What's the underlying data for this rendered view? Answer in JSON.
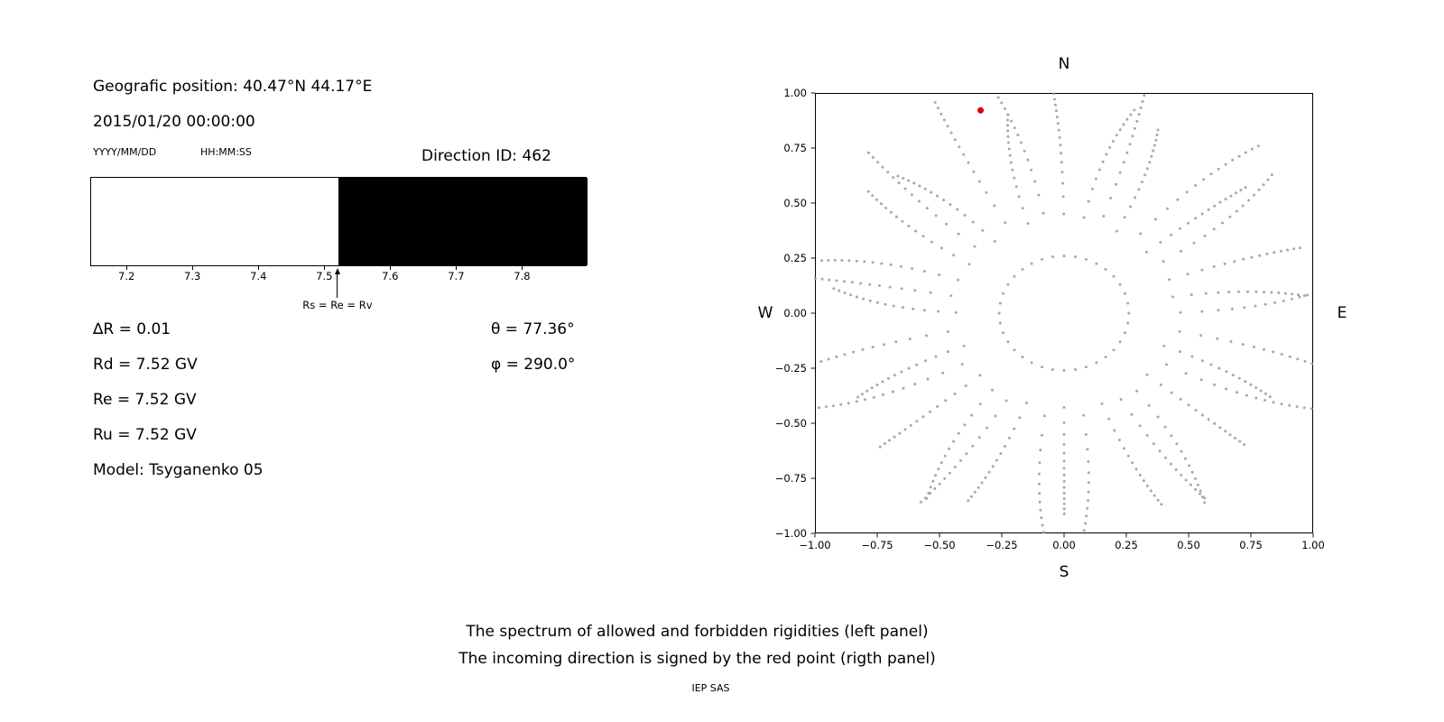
{
  "colors": {
    "background": "#ffffff",
    "text": "#000000",
    "allowed_region": "#ffffff",
    "forbidden_region": "#000000",
    "direction_dots": "#999999",
    "red_point": "#e50000"
  },
  "info": {
    "geo_position": "Geografic position: 40.47°N 44.17°E",
    "datetime": "2015/01/20 00:00:00",
    "date_format_label": "YYYY/MM/DD",
    "time_format_label": "HH:MM:SS",
    "direction_id": "Direction ID: 462"
  },
  "parameters": {
    "delta_r": "∆R = 0.01",
    "theta": "θ = 77.36°",
    "rd": "Rd = 7.52 GV",
    "phi": "φ = 290.0°",
    "re": "Re = 7.52 GV",
    "ru": "Ru = 7.52 GV",
    "model": "Model: Tsyganenko 05"
  },
  "captions": {
    "line1": "The spectrum of allowed and forbidden rigidities (left panel)",
    "line2": "The incoming direction is signed by the red point (rigth panel)",
    "credit": "IEP SAS"
  },
  "chart_data": [
    {
      "id": "rigidity-spectrum",
      "type": "bar",
      "description": "Spectrum of allowed (white) and forbidden (black) rigidities in GV",
      "x_min": 7.145,
      "x_max": 7.898,
      "xticks": [
        7.2,
        7.3,
        7.4,
        7.5,
        7.6,
        7.7,
        7.8
      ],
      "xtick_labels": [
        "7.2",
        "7.3",
        "7.4",
        "7.5",
        "7.6",
        "7.7",
        "7.8"
      ],
      "regions": [
        {
          "name": "allowed",
          "from": 7.145,
          "to": 7.52,
          "color": "#ffffff"
        },
        {
          "name": "forbidden",
          "from": 7.52,
          "to": 7.898,
          "color": "#000000"
        }
      ],
      "annotation": {
        "x": 7.52,
        "label": "Rs = Re = Rv"
      }
    },
    {
      "id": "incoming-directions",
      "type": "scatter",
      "description": "Asymptotic direction map; red point marks the incoming direction",
      "xlim": [
        -1,
        1
      ],
      "ylim": [
        -1,
        1
      ],
      "xticks": [
        -1,
        -0.75,
        -0.5,
        -0.25,
        0,
        0.25,
        0.5,
        0.75,
        1
      ],
      "xtick_labels": [
        "−1.00",
        "−0.75",
        "−0.50",
        "−0.25",
        "0.00",
        "0.25",
        "0.50",
        "0.75",
        "1.00"
      ],
      "yticks": [
        1,
        0.75,
        0.5,
        0.25,
        0,
        -0.25,
        -0.5,
        -0.75,
        -1
      ],
      "ytick_labels": [
        "1.00",
        "0.75",
        "0.50",
        "0.25",
        "0.00",
        "−0.25",
        "−0.50",
        "−0.75",
        "−1.00"
      ],
      "compass": {
        "north": "N",
        "south": "S",
        "east": "E",
        "west": "W"
      },
      "grid": false,
      "legend": false,
      "spokes": {
        "count": 36,
        "angle_step_deg": 10,
        "r_inner": 0.26,
        "r_outer_base": 1.0,
        "r_outer_variation": 0.09,
        "points_per_spoke": 16,
        "outer_clustering_power": 0.5,
        "curl_max_deg": 7,
        "color": "#999999",
        "opacity": 0.85
      },
      "red_point": {
        "x": -0.335,
        "y": 0.921,
        "color": "#e50000"
      }
    }
  ]
}
